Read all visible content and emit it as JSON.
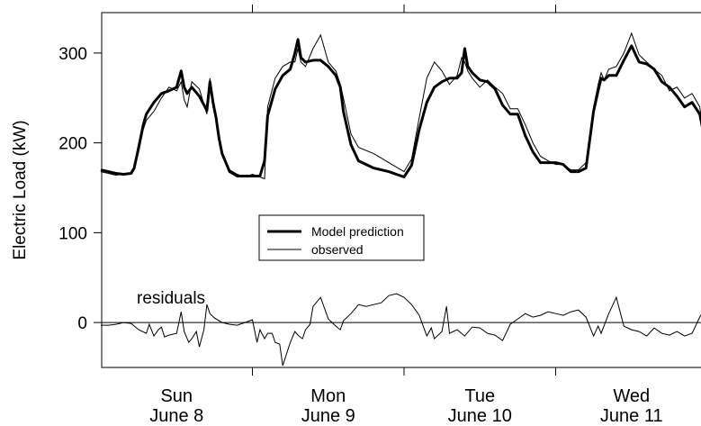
{
  "chart_data": {
    "type": "line",
    "ylabel": "Electric Load (kW)",
    "ylim": [
      -50,
      345
    ],
    "xlim": [
      0,
      4
    ],
    "yticks": [
      0,
      100,
      200,
      300
    ],
    "day_ticks": [
      {
        "day": "Sun",
        "date": "June 8"
      },
      {
        "day": "Mon",
        "date": "June 9"
      },
      {
        "day": "Tue",
        "date": "June 10"
      },
      {
        "day": "Wed",
        "date": "June 11"
      }
    ],
    "annotation": "residuals",
    "legend": {
      "placement": "center",
      "entries": [
        "Model prediction",
        "observed"
      ]
    },
    "zero_line": 0,
    "series": [
      {
        "name": "Model prediction",
        "x": [
          0,
          0.05,
          0.1,
          0.15,
          0.2,
          0.22,
          0.25,
          0.28,
          0.3,
          0.35,
          0.4,
          0.45,
          0.5,
          0.53,
          0.55,
          0.57,
          0.6,
          0.65,
          0.7,
          0.72,
          0.74,
          0.76,
          0.78,
          0.8,
          0.85,
          0.9,
          0.95,
          1.0,
          1.05,
          1.08,
          1.1,
          1.15,
          1.2,
          1.25,
          1.28,
          1.3,
          1.32,
          1.35,
          1.4,
          1.45,
          1.5,
          1.55,
          1.58,
          1.6,
          1.65,
          1.7,
          1.8,
          1.9,
          2.0,
          2.05,
          2.1,
          2.15,
          2.2,
          2.25,
          2.3,
          2.35,
          2.38,
          2.4,
          2.42,
          2.45,
          2.5,
          2.55,
          2.6,
          2.65,
          2.7,
          2.75,
          2.8,
          2.85,
          2.9,
          2.95,
          3.0,
          3.05,
          3.1,
          3.15,
          3.2,
          3.25,
          3.28,
          3.3,
          3.32,
          3.35,
          3.4,
          3.45,
          3.5,
          3.55,
          3.6,
          3.65,
          3.7,
          3.75,
          3.8,
          3.85,
          3.9,
          3.95,
          4.0
        ],
        "y": [
          170,
          168,
          166,
          165,
          166,
          172,
          195,
          220,
          232,
          245,
          255,
          258,
          262,
          280,
          262,
          255,
          262,
          252,
          236,
          268,
          245,
          228,
          205,
          188,
          168,
          163,
          163,
          163,
          163,
          180,
          230,
          260,
          275,
          282,
          300,
          315,
          295,
          290,
          292,
          292,
          285,
          275,
          262,
          235,
          198,
          180,
          172,
          168,
          162,
          175,
          215,
          245,
          262,
          268,
          272,
          272,
          278,
          305,
          285,
          278,
          270,
          268,
          260,
          242,
          232,
          232,
          208,
          190,
          178,
          178,
          178,
          176,
          168,
          168,
          172,
          235,
          258,
          272,
          270,
          275,
          275,
          292,
          308,
          290,
          288,
          282,
          268,
          262,
          252,
          240,
          245,
          232,
          190
        ]
      },
      {
        "name": "observed",
        "x": [
          0,
          0.05,
          0.1,
          0.15,
          0.2,
          0.22,
          0.25,
          0.28,
          0.3,
          0.35,
          0.4,
          0.45,
          0.5,
          0.53,
          0.55,
          0.57,
          0.6,
          0.65,
          0.7,
          0.72,
          0.74,
          0.76,
          0.78,
          0.8,
          0.85,
          0.9,
          0.95,
          1.0,
          1.05,
          1.08,
          1.1,
          1.15,
          1.2,
          1.25,
          1.28,
          1.3,
          1.32,
          1.35,
          1.4,
          1.45,
          1.5,
          1.55,
          1.58,
          1.6,
          1.65,
          1.7,
          1.8,
          1.9,
          2.0,
          2.05,
          2.1,
          2.15,
          2.2,
          2.25,
          2.3,
          2.35,
          2.38,
          2.4,
          2.42,
          2.45,
          2.5,
          2.55,
          2.6,
          2.65,
          2.7,
          2.75,
          2.8,
          2.85,
          2.9,
          2.95,
          3.0,
          3.05,
          3.1,
          3.15,
          3.2,
          3.25,
          3.28,
          3.3,
          3.32,
          3.35,
          3.4,
          3.45,
          3.5,
          3.55,
          3.6,
          3.65,
          3.7,
          3.75,
          3.8,
          3.85,
          3.9,
          3.95,
          4.0
        ],
        "y": [
          168,
          166,
          164,
          165,
          165,
          170,
          190,
          215,
          225,
          235,
          250,
          262,
          258,
          268,
          248,
          240,
          268,
          260,
          232,
          272,
          240,
          225,
          210,
          190,
          170,
          165,
          162,
          165,
          162,
          160,
          240,
          272,
          285,
          290,
          290,
          305,
          290,
          285,
          305,
          320,
          290,
          280,
          265,
          250,
          210,
          195,
          188,
          178,
          168,
          182,
          228,
          272,
          290,
          280,
          265,
          275,
          295,
          290,
          280,
          272,
          262,
          270,
          262,
          255,
          238,
          238,
          220,
          200,
          185,
          180,
          176,
          176,
          170,
          170,
          178,
          240,
          265,
          278,
          270,
          282,
          285,
          300,
          322,
          298,
          290,
          282,
          275,
          258,
          262,
          250,
          255,
          240,
          175
        ]
      },
      {
        "name": "residuals",
        "x": [
          0,
          0.05,
          0.1,
          0.15,
          0.2,
          0.25,
          0.3,
          0.32,
          0.35,
          0.38,
          0.4,
          0.42,
          0.45,
          0.5,
          0.53,
          0.55,
          0.58,
          0.6,
          0.63,
          0.65,
          0.68,
          0.7,
          0.72,
          0.75,
          0.8,
          0.85,
          0.9,
          0.95,
          1.0,
          1.03,
          1.05,
          1.08,
          1.1,
          1.13,
          1.15,
          1.18,
          1.2,
          1.25,
          1.28,
          1.3,
          1.33,
          1.35,
          1.38,
          1.4,
          1.45,
          1.5,
          1.55,
          1.58,
          1.6,
          1.65,
          1.7,
          1.75,
          1.8,
          1.85,
          1.9,
          1.95,
          2.0,
          2.05,
          2.1,
          2.15,
          2.18,
          2.2,
          2.25,
          2.28,
          2.3,
          2.35,
          2.4,
          2.45,
          2.5,
          2.55,
          2.6,
          2.65,
          2.7,
          2.75,
          2.8,
          2.85,
          2.9,
          2.95,
          3.0,
          3.05,
          3.1,
          3.15,
          3.2,
          3.25,
          3.28,
          3.3,
          3.35,
          3.4,
          3.45,
          3.5,
          3.55,
          3.6,
          3.65,
          3.7,
          3.75,
          3.8,
          3.85,
          3.9,
          3.95,
          4.0
        ],
        "y": [
          -3,
          -3,
          -2,
          0,
          -1,
          -8,
          -12,
          -2,
          -15,
          -8,
          -5,
          -16,
          -14,
          -12,
          12,
          -10,
          -22,
          -18,
          -10,
          -27,
          -8,
          20,
          10,
          5,
          0,
          -2,
          -3,
          0,
          3,
          -22,
          -8,
          -18,
          -12,
          -12,
          -22,
          -24,
          -48,
          -22,
          -10,
          -14,
          -18,
          -8,
          -2,
          18,
          28,
          4,
          -4,
          -8,
          2,
          10,
          20,
          18,
          20,
          22,
          30,
          32,
          28,
          20,
          8,
          -15,
          -6,
          -18,
          -10,
          18,
          -12,
          -8,
          -15,
          -5,
          -6,
          -12,
          -14,
          -20,
          -2,
          4,
          10,
          6,
          8,
          12,
          10,
          8,
          12,
          14,
          6,
          -15,
          -4,
          -12,
          10,
          28,
          -4,
          -8,
          -10,
          -15,
          -6,
          -12,
          -14,
          -10,
          -15,
          -12,
          6,
          20
        ]
      }
    ]
  }
}
